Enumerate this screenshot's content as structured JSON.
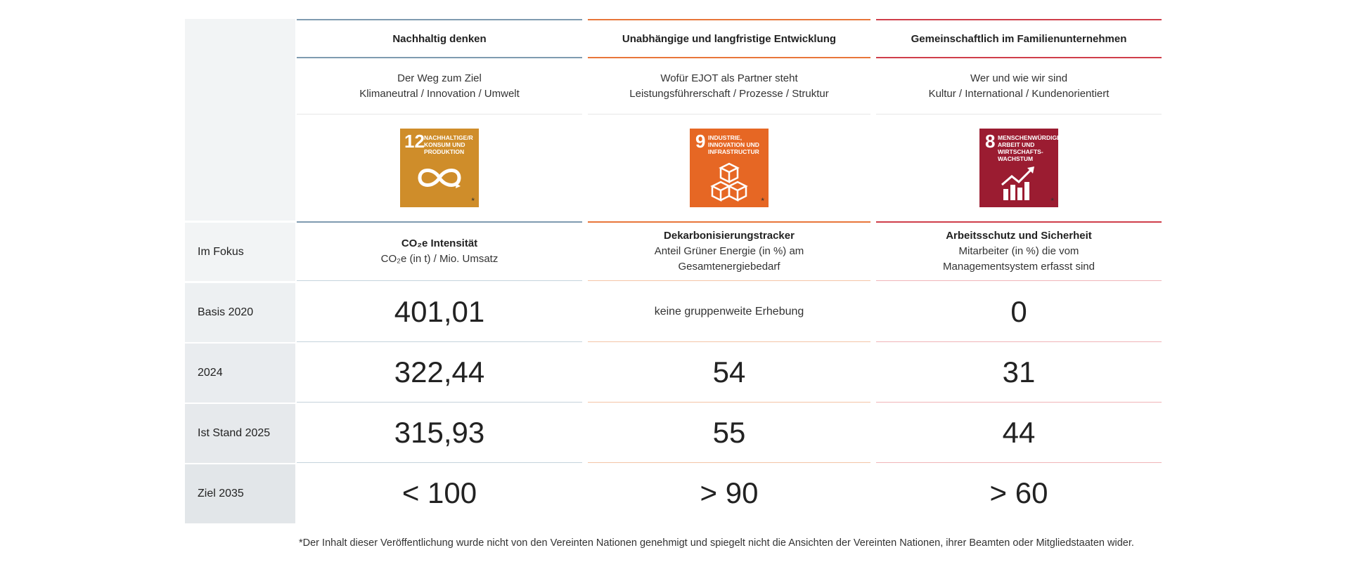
{
  "columns": [
    {
      "header": "Nachhaltig denken",
      "sub1": "Der Weg zum Ziel",
      "sub2": "Klimaneutral / Innovation / Umwelt",
      "sdg_number": "12",
      "sdg_label": "NACHHALTIGE/R KONSUM UND PRODUKTION",
      "sdg_icon": "infinity-icon",
      "sdg_color": "#cf8d2a",
      "accent": "#7f9bb0",
      "focus_title": "CO₂e Intensität",
      "focus_sub1": "CO₂e (in t) / Mio. Umsatz",
      "focus_sub2": "",
      "values": [
        "401,01",
        "322,44",
        "315,93",
        "< 100"
      ]
    },
    {
      "header": "Unabhängige und langfristige Entwicklung",
      "sub1": "Wofür EJOT als Partner steht",
      "sub2": "Leistungsführerschaft / Prozesse / Struktur",
      "sdg_number": "9",
      "sdg_label": "INDUSTRIE, INNOVATION UND INFRASTRUCTUR",
      "sdg_icon": "cubes-icon",
      "sdg_color": "#e66724",
      "accent": "#e8763a",
      "focus_title": "Dekarbonisierungstracker",
      "focus_sub1": "Anteil Grüner Energie (in %) am",
      "focus_sub2": "Gesamtenergiebedarf",
      "values": [
        "keine gruppenweite Erhebung",
        "54",
        "55",
        "> 90"
      ]
    },
    {
      "header": "Gemeinschaftlich im Familienunternehmen",
      "sub1": "Wer und wie wir sind",
      "sub2": "Kultur / International / Kundenorientiert",
      "sdg_number": "8",
      "sdg_label": "MENSCHENWÜRDIGE ARBEIT UND WIRTSCHAFTS-WACHSTUM",
      "sdg_icon": "growth-chart-icon",
      "sdg_color": "#9b1c31",
      "accent": "#cf3e4a",
      "focus_title": "Arbeitsschutz und Sicherheit",
      "focus_sub1": "Mitarbeiter (in %) die vom",
      "focus_sub2": "Managementsystem erfasst sind",
      "values": [
        "0",
        "31",
        "44",
        "> 60"
      ]
    }
  ],
  "rows": [
    "Im Fokus",
    "Basis 2020",
    "2024",
    "Ist Stand 2025",
    "Ziel 2035"
  ],
  "sdg_asterisk": "*",
  "footnote": "*Der Inhalt dieser Veröffentlichung wurde nicht von den Vereinten Nationen genehmigt und spiegelt nicht die Ansichten der Vereinten Nationen, ihrer Beamten oder Mitgliedstaaten wider."
}
